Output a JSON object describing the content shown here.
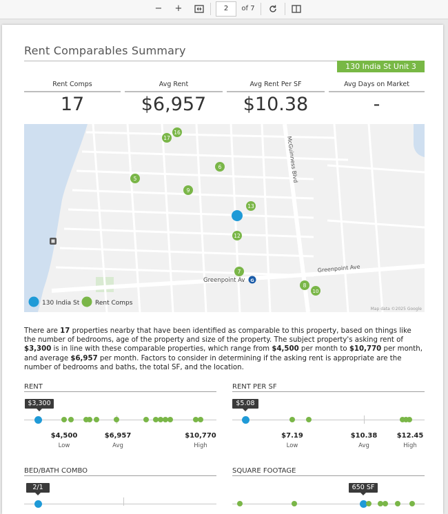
{
  "viewer": {
    "zoom_out": "−",
    "zoom_in": "+",
    "page_current": "2",
    "page_total": "of 7"
  },
  "report": {
    "title": "Rent Comparables Summary",
    "subject_address": "130 India St Unit 3",
    "stats": [
      {
        "label": "Rent Comps",
        "value": "17"
      },
      {
        "label": "Avg Rent",
        "value": "$6,957"
      },
      {
        "label": "Avg Rent Per SF",
        "value": "$10.38"
      },
      {
        "label": "Avg Days on Market",
        "value": "-"
      }
    ]
  },
  "map": {
    "streets": [
      "McGuinness Blvd",
      "Greenpoint Ave",
      "Greenpoint Av"
    ],
    "subway_badge": "G",
    "comps": [
      "16",
      "17",
      "6",
      "5",
      "9",
      "13",
      "12",
      "7",
      "8",
      "10"
    ],
    "legend_subject": "130 India St",
    "legend_comps": "Rent Comps",
    "attribution": "Map data ©2025 Google",
    "colors": {
      "subject": "#1f9ad7",
      "comp": "#7ab648",
      "water": "#cfdff0"
    }
  },
  "summary": {
    "p1": "There are ",
    "count": "17",
    "p2": " properties nearby that have been identified as comparable to this property, based on things like the number of bedrooms, age of the property and size of the property. The subject property's asking rent of ",
    "asking": "$3,300",
    "p3": " is in line with these comparable properties, which range from ",
    "low": "$4,500",
    "p4": " per month to ",
    "high": "$10,770",
    "p5": " per month, and average ",
    "avg": "$6,957",
    "p6": " per month. Factors to consider in determining if the asking rent is appropriate are the number of bedrooms and baths, the total SF, and the location."
  },
  "rent": {
    "title": "RENT",
    "subject": "$3,300",
    "low_value": "$4,500",
    "low_label": "Low",
    "avg_value": "$6,957",
    "avg_label": "Avg",
    "high_value": "$10,770",
    "high_label": "High"
  },
  "rent_per_sf": {
    "title": "RENT PER SF",
    "subject": "$5.08",
    "low_value": "$7.19",
    "low_label": "Low",
    "avg_value": "$10.38",
    "avg_label": "Avg",
    "high_value": "$12.45",
    "high_label": "High"
  },
  "bed_bath": {
    "title": "BED/BATH COMBO",
    "subject": "2/1"
  },
  "square_footage": {
    "title": "SQUARE FOOTAGE",
    "subject": "650 SF"
  }
}
